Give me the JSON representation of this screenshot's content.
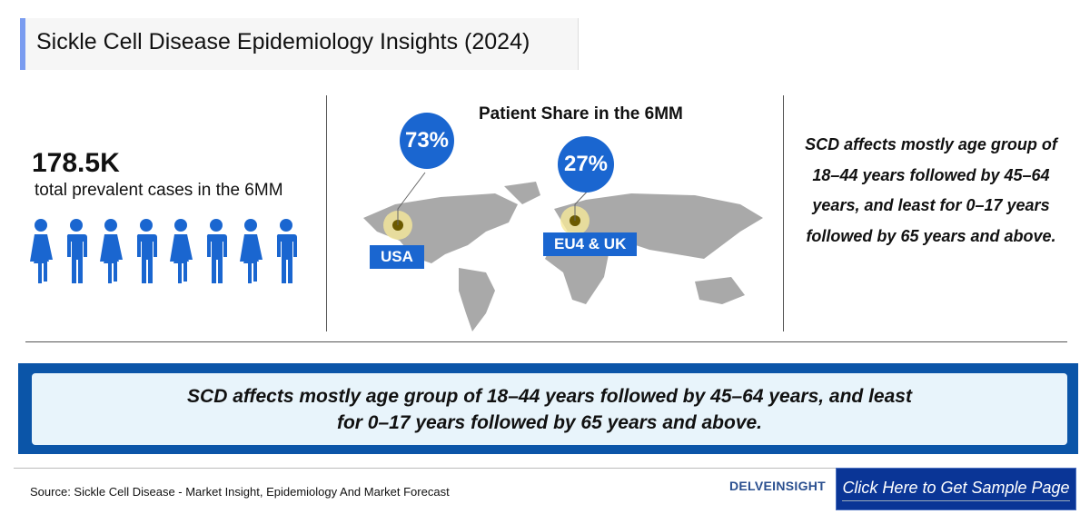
{
  "title": "Sickle Cell Disease Epidemiology Insights (2024)",
  "prevalence": {
    "value": "178.5K",
    "label": "total prevalent cases in the 6MM"
  },
  "map": {
    "title": "Patient Share in the 6MM",
    "regions": [
      {
        "label": "USA",
        "share": "73%"
      },
      {
        "label": "EU4 & UK",
        "share": "27%"
      }
    ]
  },
  "side_text": "SCD affects mostly age group of  18–44 years followed by  45–64 years, and least for  0–17 years followed by  65 years and above.",
  "banner": {
    "line1": "SCD affects mostly age group of  18–44 years followed by  45–64 years, and least",
    "line2": "for  0–17 years  followed by  65 years and above."
  },
  "footer": {
    "source": "Source: Sickle Cell Disease - Market Insight, Epidemiology And Market Forecast",
    "logo": "DELVEINSIGHT",
    "cta": "Click Here to Get Sample Page"
  },
  "colors": {
    "accent": "#1a66d0",
    "band": "#0b55a8",
    "cta": "#0a3596"
  }
}
